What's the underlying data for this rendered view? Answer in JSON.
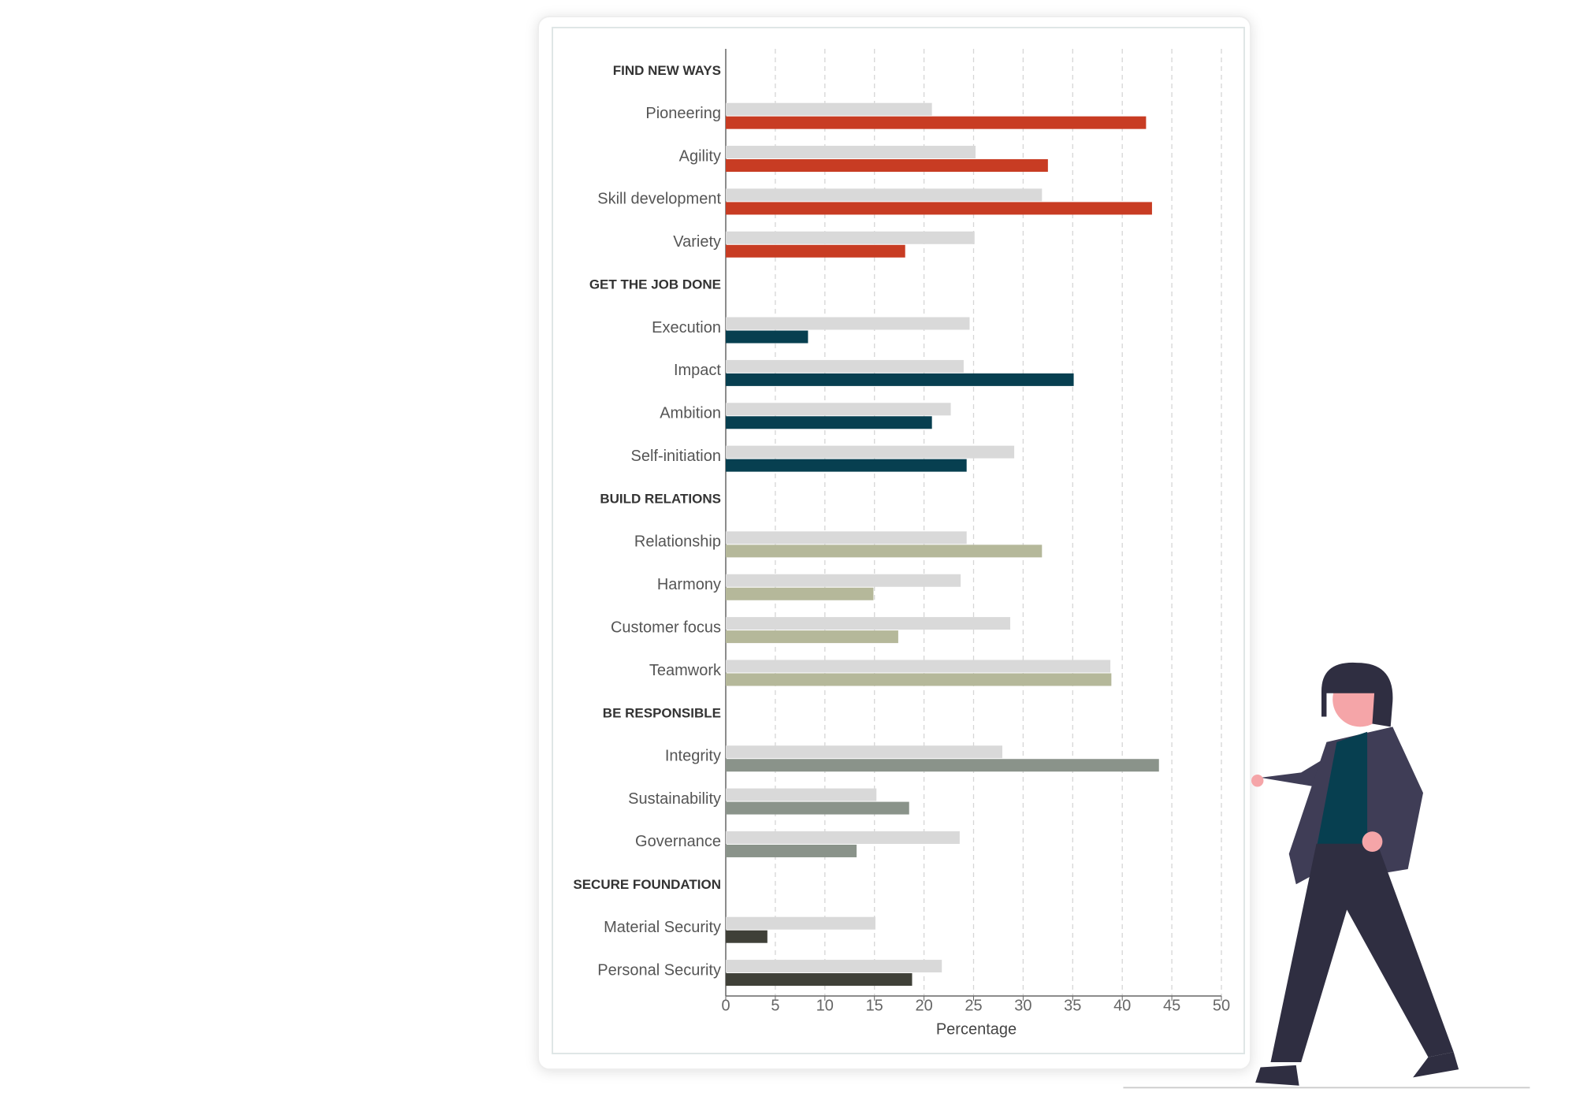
{
  "chart_data": {
    "type": "bar",
    "orientation": "horizontal",
    "x_label": "Percentage",
    "xlim": [
      0,
      50
    ],
    "xticks": [
      0,
      5,
      10,
      15,
      20,
      25,
      30,
      35,
      40,
      45,
      50
    ],
    "grid": true,
    "reference_color": "#d9d9d9",
    "groups": [
      {
        "name": "FIND NEW WAYS",
        "color": "#c83c23",
        "categories": [
          "Pioneering",
          "Agility",
          "Skill development",
          "Variety"
        ],
        "reference_values": [
          20.8,
          25.2,
          31.9,
          25.1
        ],
        "values": [
          42.4,
          32.5,
          43.0,
          18.1
        ]
      },
      {
        "name": "GET THE JOB DONE",
        "color": "#073f50",
        "categories": [
          "Execution",
          "Impact",
          "Ambition",
          "Self-initiation"
        ],
        "reference_values": [
          24.6,
          24.0,
          22.7,
          29.1
        ],
        "values": [
          8.3,
          35.1,
          20.8,
          24.3
        ]
      },
      {
        "name": "BUILD RELATIONS",
        "color": "#b5b89a",
        "categories": [
          "Relationship",
          "Harmony",
          "Customer focus",
          "Teamwork"
        ],
        "reference_values": [
          24.3,
          23.7,
          28.7,
          38.8
        ],
        "values": [
          31.9,
          14.9,
          17.4,
          38.9
        ]
      },
      {
        "name": "BE RESPONSIBLE",
        "color": "#8a938a",
        "categories": [
          "Integrity",
          "Sustainability",
          "Governance"
        ],
        "reference_values": [
          27.9,
          15.2,
          23.6
        ],
        "values": [
          43.7,
          18.5,
          13.2
        ]
      },
      {
        "name": "SECURE FOUNDATION",
        "color": "#3f4038",
        "categories": [
          "Material Security",
          "Personal Security"
        ],
        "reference_values": [
          15.1,
          21.8
        ],
        "values": [
          4.2,
          18.8
        ]
      }
    ]
  }
}
